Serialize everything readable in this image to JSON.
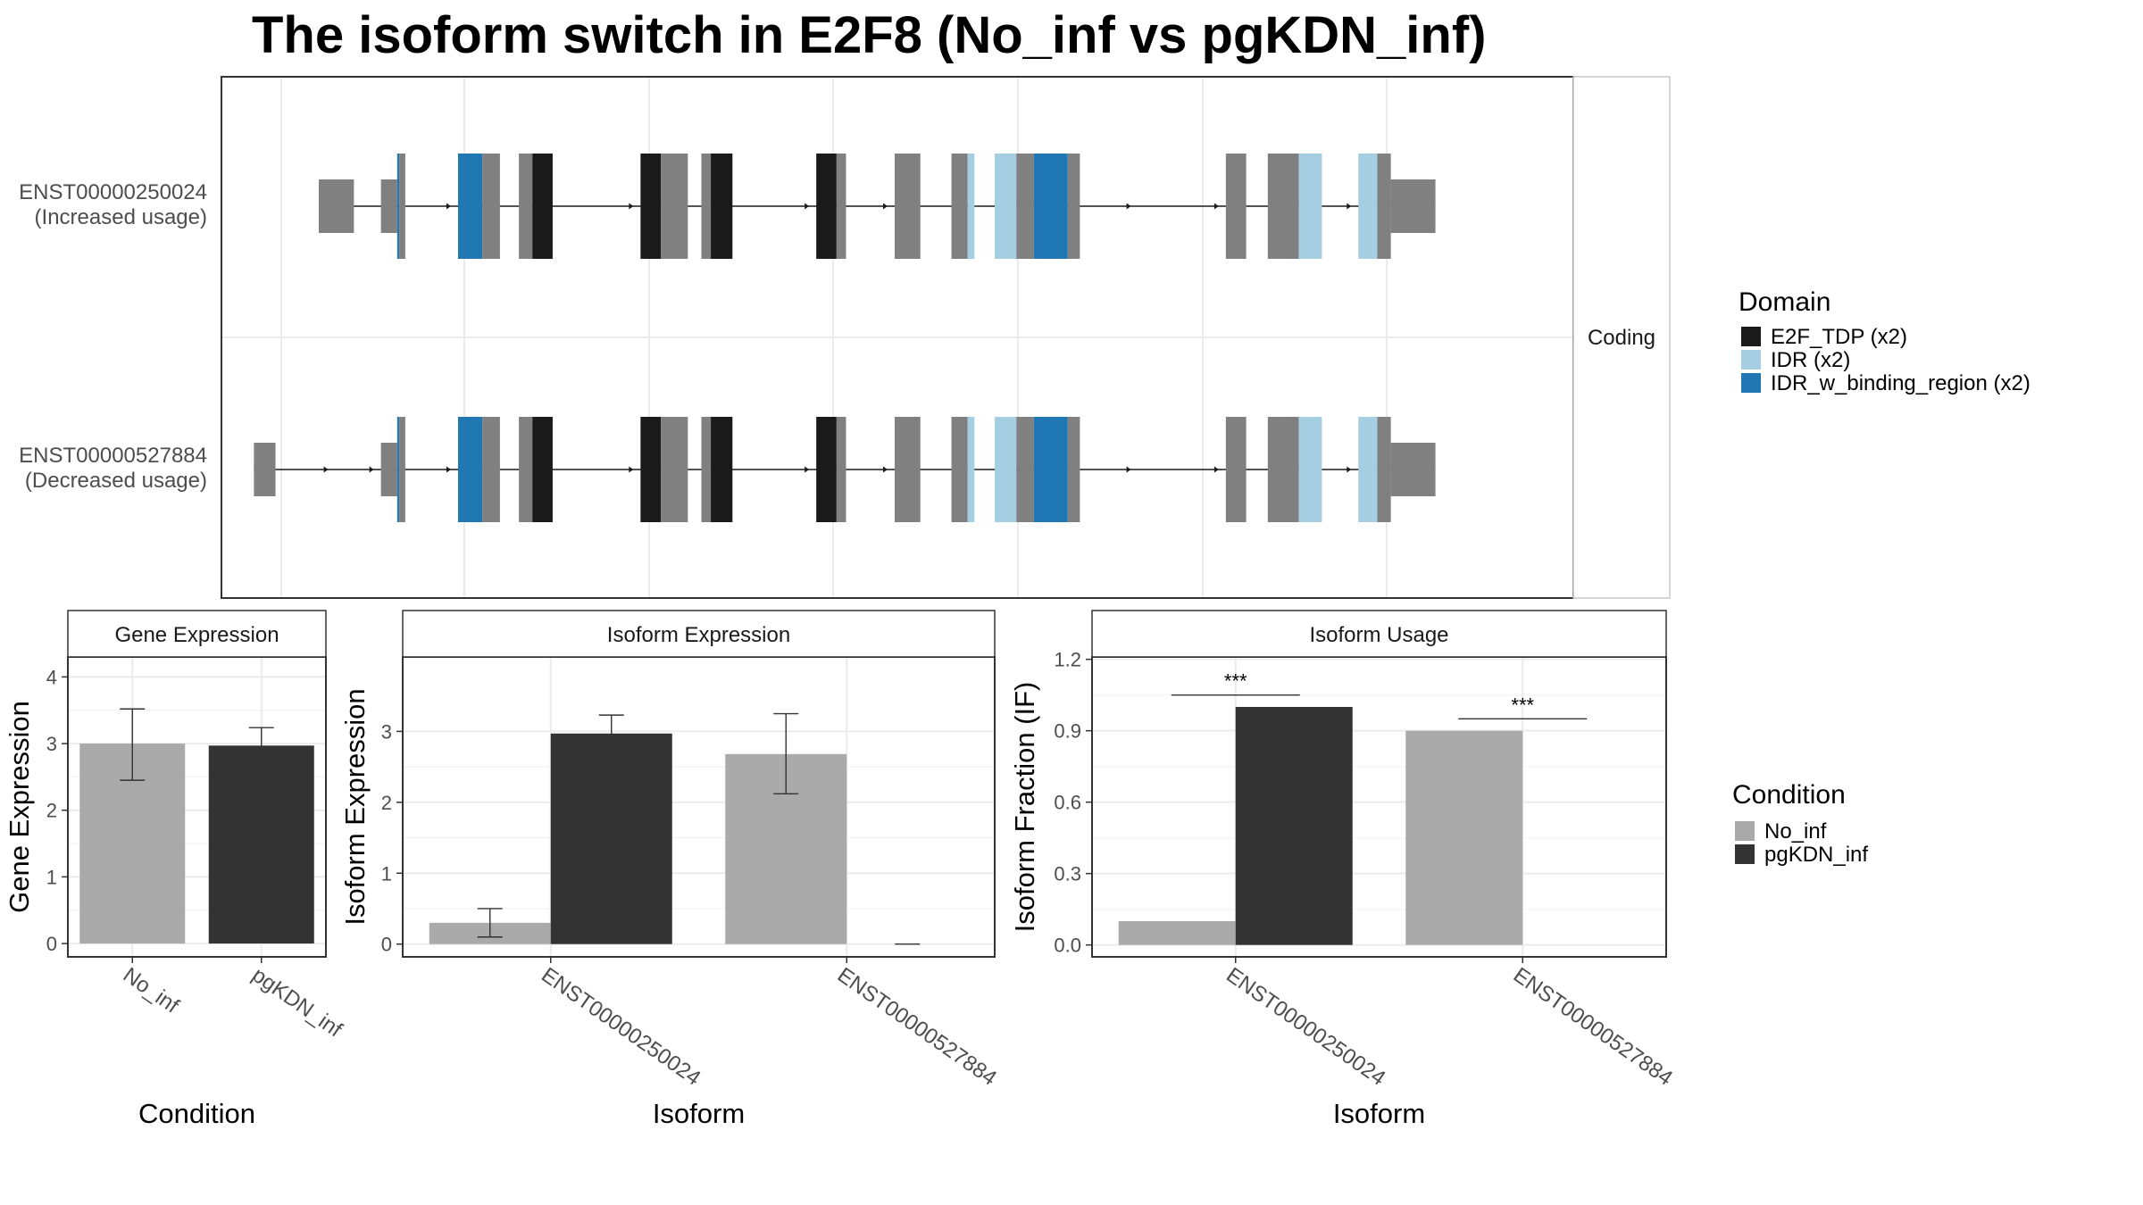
{
  "title": "The isoform switch in E2F8 (No_inf vs pgKDN_inf)",
  "colors": {
    "exon": "#808080",
    "E2F_TDP": "#1a1a1a",
    "IDR": "#a6cee3",
    "IDR_w_binding_region": "#1f78b4",
    "No_inf": "#aaaaaa",
    "pgKDN_inf": "#333333",
    "panel_border": "#333333",
    "grid": "#ebebeb",
    "strip_fill": "#ffffff"
  },
  "chart_data": [
    {
      "type": "gene-structure",
      "strip_label": "Coding",
      "x_domain": [
        0,
        1000
      ],
      "isoforms": [
        {
          "id": "ENST00000250024",
          "label_line1": "ENST00000250024",
          "label_line2": "(Increased usage)",
          "exons": [
            {
              "start": 72,
              "end": 98,
              "size": "utr"
            },
            {
              "start": 118,
              "end": 130,
              "size": "utr"
            },
            {
              "start": 130,
              "end": 131.5,
              "size": "cds",
              "domain": "IDR_w_binding_region"
            },
            {
              "start": 131.5,
              "end": 136,
              "size": "cds"
            },
            {
              "start": 175,
              "end": 193,
              "size": "cds",
              "domain": "IDR_w_binding_region"
            },
            {
              "start": 193,
              "end": 206,
              "size": "cds"
            },
            {
              "start": 220,
              "end": 230,
              "size": "cds"
            },
            {
              "start": 230,
              "end": 245,
              "size": "cds",
              "domain": "E2F_TDP"
            },
            {
              "start": 310,
              "end": 325,
              "size": "cds",
              "domain": "E2F_TDP"
            },
            {
              "start": 325,
              "end": 345,
              "size": "cds"
            },
            {
              "start": 355,
              "end": 362,
              "size": "cds"
            },
            {
              "start": 362,
              "end": 378,
              "size": "cds",
              "domain": "E2F_TDP"
            },
            {
              "start": 440,
              "end": 455,
              "size": "cds",
              "domain": "E2F_TDP"
            },
            {
              "start": 455,
              "end": 462,
              "size": "cds"
            },
            {
              "start": 498,
              "end": 517,
              "size": "cds"
            },
            {
              "start": 540,
              "end": 552,
              "size": "cds"
            },
            {
              "start": 552,
              "end": 557,
              "size": "cds",
              "domain": "IDR"
            },
            {
              "start": 572,
              "end": 588,
              "size": "cds",
              "domain": "IDR"
            },
            {
              "start": 588,
              "end": 601,
              "size": "cds"
            },
            {
              "start": 601,
              "end": 626,
              "size": "cds",
              "domain": "IDR_w_binding_region"
            },
            {
              "start": 626,
              "end": 635,
              "size": "cds"
            },
            {
              "start": 743,
              "end": 758,
              "size": "cds"
            },
            {
              "start": 774,
              "end": 797,
              "size": "cds"
            },
            {
              "start": 797,
              "end": 814,
              "size": "cds",
              "domain": "IDR"
            },
            {
              "start": 841,
              "end": 855,
              "size": "cds",
              "domain": "IDR"
            },
            {
              "start": 855,
              "end": 865,
              "size": "cds"
            },
            {
              "start": 865,
              "end": 898,
              "size": "utr"
            }
          ]
        },
        {
          "id": "ENST00000527884",
          "label_line1": "ENST00000527884",
          "label_line2": "(Decreased usage)",
          "exons": [
            {
              "start": 24,
              "end": 40,
              "size": "utr"
            },
            {
              "start": 118,
              "end": 130,
              "size": "utr"
            },
            {
              "start": 130,
              "end": 131.5,
              "size": "cds",
              "domain": "IDR_w_binding_region"
            },
            {
              "start": 131.5,
              "end": 136,
              "size": "cds"
            },
            {
              "start": 175,
              "end": 193,
              "size": "cds",
              "domain": "IDR_w_binding_region"
            },
            {
              "start": 193,
              "end": 206,
              "size": "cds"
            },
            {
              "start": 220,
              "end": 230,
              "size": "cds"
            },
            {
              "start": 230,
              "end": 245,
              "size": "cds",
              "domain": "E2F_TDP"
            },
            {
              "start": 310,
              "end": 325,
              "size": "cds",
              "domain": "E2F_TDP"
            },
            {
              "start": 325,
              "end": 345,
              "size": "cds"
            },
            {
              "start": 355,
              "end": 362,
              "size": "cds"
            },
            {
              "start": 362,
              "end": 378,
              "size": "cds",
              "domain": "E2F_TDP"
            },
            {
              "start": 440,
              "end": 455,
              "size": "cds",
              "domain": "E2F_TDP"
            },
            {
              "start": 455,
              "end": 462,
              "size": "cds"
            },
            {
              "start": 498,
              "end": 517,
              "size": "cds"
            },
            {
              "start": 540,
              "end": 552,
              "size": "cds"
            },
            {
              "start": 552,
              "end": 557,
              "size": "cds",
              "domain": "IDR"
            },
            {
              "start": 572,
              "end": 588,
              "size": "cds",
              "domain": "IDR"
            },
            {
              "start": 588,
              "end": 601,
              "size": "cds"
            },
            {
              "start": 601,
              "end": 626,
              "size": "cds",
              "domain": "IDR_w_binding_region"
            },
            {
              "start": 626,
              "end": 635,
              "size": "cds"
            },
            {
              "start": 743,
              "end": 758,
              "size": "cds"
            },
            {
              "start": 774,
              "end": 797,
              "size": "cds"
            },
            {
              "start": 797,
              "end": 814,
              "size": "cds",
              "domain": "IDR"
            },
            {
              "start": 841,
              "end": 855,
              "size": "cds",
              "domain": "IDR"
            },
            {
              "start": 855,
              "end": 865,
              "size": "cds"
            },
            {
              "start": 865,
              "end": 898,
              "size": "utr"
            }
          ]
        }
      ],
      "legend": {
        "title": "Domain",
        "entries": [
          {
            "key": "E2F_TDP",
            "label": "E2F_TDP (x2)"
          },
          {
            "key": "IDR",
            "label": "IDR (x2)"
          },
          {
            "key": "IDR_w_binding_region",
            "label": "IDR_w_binding_region (x2)"
          }
        ]
      }
    },
    {
      "type": "bar",
      "strip_label": "Gene Expression",
      "xlabel": "Condition",
      "ylabel": "Gene Expression",
      "categories": [
        "No_inf",
        "pgKDN_inf"
      ],
      "values": [
        3.0,
        2.97
      ],
      "errors": [
        [
          2.45,
          3.52
        ],
        [
          2.72,
          3.24
        ]
      ],
      "fill_keys": [
        "No_inf",
        "pgKDN_inf"
      ],
      "ylim": [
        -0.2,
        4.3
      ],
      "yticks": [
        0,
        1,
        2,
        3,
        4
      ]
    },
    {
      "type": "bar",
      "strip_label": "Isoform Expression",
      "xlabel": "Isoform",
      "ylabel": "Isoform Expression",
      "categories": [
        "ENST00000250024",
        "ENST00000527884"
      ],
      "series": [
        {
          "name": "No_inf",
          "values": [
            0.3,
            2.68
          ],
          "errors": [
            [
              0.1,
              0.5
            ],
            [
              2.12,
              3.25
            ]
          ]
        },
        {
          "name": "pgKDN_inf",
          "values": [
            2.97,
            0.0
          ],
          "errors": [
            [
              2.72,
              3.23
            ],
            [
              0.0,
              0.0
            ]
          ]
        }
      ],
      "ylim": [
        -0.18,
        4.05
      ],
      "yticks": [
        0,
        1,
        2,
        3
      ]
    },
    {
      "type": "bar",
      "strip_label": "Isoform Usage",
      "xlabel": "Isoform",
      "ylabel": "Isoform Fraction (IF)",
      "categories": [
        "ENST00000250024",
        "ENST00000527884"
      ],
      "series": [
        {
          "name": "No_inf",
          "values": [
            0.1,
            0.9
          ]
        },
        {
          "name": "pgKDN_inf",
          "values": [
            1.0,
            0.0
          ]
        }
      ],
      "significance": [
        {
          "category": "ENST00000250024",
          "label": "***",
          "y": 1.05
        },
        {
          "category": "ENST00000527884",
          "label": "***",
          "y": 0.95
        }
      ],
      "ylim": [
        -0.05,
        1.21
      ],
      "yticks": [
        0.0,
        0.3,
        0.6,
        0.9,
        1.2
      ],
      "ytick_labels": [
        "0.0",
        "0.3",
        "0.6",
        "0.9",
        "1.2"
      ]
    }
  ],
  "condition_legend": {
    "title": "Condition",
    "entries": [
      {
        "key": "No_inf",
        "label": "No_inf"
      },
      {
        "key": "pgKDN_inf",
        "label": "pgKDN_inf"
      }
    ]
  }
}
